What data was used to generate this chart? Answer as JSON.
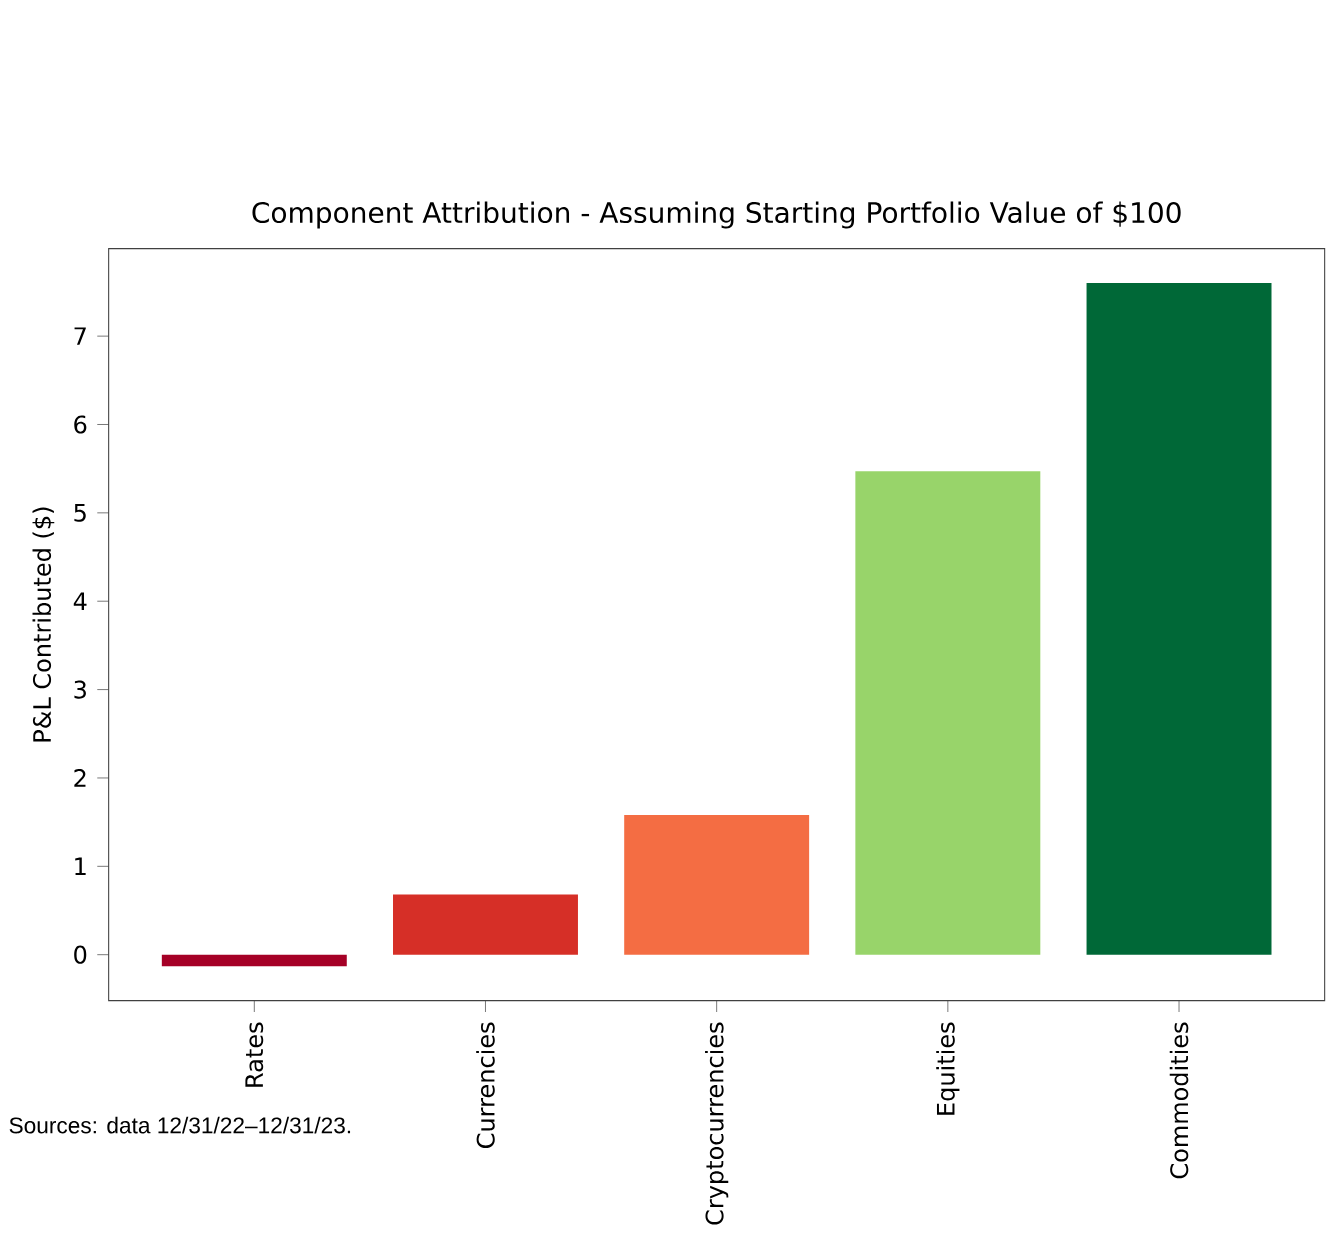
{
  "chart_data": {
    "type": "bar",
    "title": "Component Attribution - Assuming Starting Portfolio Value of $100",
    "ylabel": "P&L Contributed ($)",
    "categories": [
      "Rates",
      "Currencies",
      "Cryptocurrencies",
      "Equities",
      "Commodities"
    ],
    "values": [
      -0.13,
      0.68,
      1.58,
      5.47,
      7.6
    ],
    "colors": [
      "#a50026",
      "#d62f27",
      "#f46d43",
      "#98d46a",
      "#006837"
    ],
    "ylim": [
      -0.52,
      7.99
    ],
    "yticks": [
      0,
      1,
      2,
      3,
      4,
      5,
      6,
      7
    ],
    "annotations": [
      "Sources: data 12/31/22–12/31/23."
    ]
  }
}
